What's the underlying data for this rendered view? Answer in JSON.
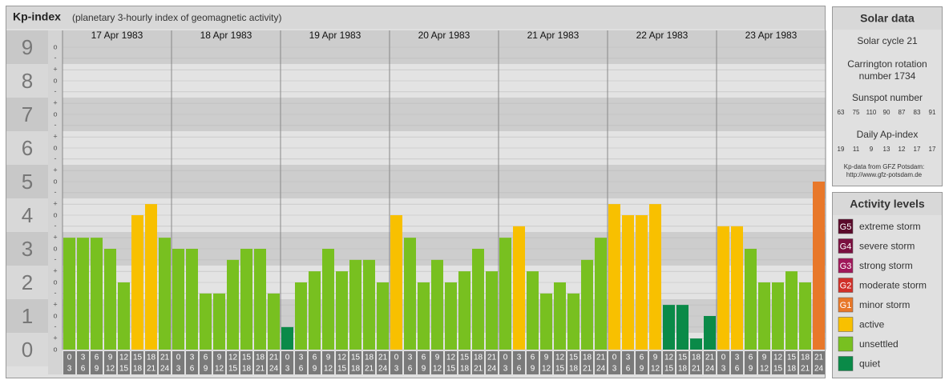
{
  "chart_data": {
    "type": "bar",
    "title": "Kp-index",
    "subtitle": "(planetary 3-hourly index of geomagnetic activity)",
    "days": [
      "17 Apr 1983",
      "18 Apr 1983",
      "19 Apr 1983",
      "20 Apr 1983",
      "21 Apr 1983",
      "22 Apr 1983",
      "23 Apr 1983"
    ],
    "hours": [
      [
        0,
        3
      ],
      [
        3,
        6
      ],
      [
        6,
        9
      ],
      [
        9,
        12
      ],
      [
        12,
        15
      ],
      [
        15,
        18
      ],
      [
        18,
        21
      ],
      [
        21,
        24
      ]
    ],
    "values": [
      [
        3.33,
        3.33,
        3.33,
        3,
        2,
        4,
        4.33,
        3.33
      ],
      [
        3,
        3,
        1.67,
        1.67,
        2.67,
        3,
        3,
        1.67
      ],
      [
        0.67,
        2,
        2.33,
        3,
        2.33,
        2.67,
        2.67,
        2
      ],
      [
        4,
        3.33,
        2,
        2.67,
        2,
        2.33,
        3,
        2.33
      ],
      [
        3.33,
        3.67,
        2.33,
        1.67,
        2,
        1.67,
        2.67,
        3.33
      ],
      [
        4.33,
        4,
        4,
        4.33,
        1.33,
        1.33,
        0.33,
        1
      ],
      [
        3.67,
        3.67,
        3,
        2,
        2,
        2.33,
        2,
        5
      ]
    ],
    "colors": [
      [
        "#78c020",
        "#78c020",
        "#78c020",
        "#78c020",
        "#78c020",
        "#f8c000",
        "#f8c000",
        "#78c020"
      ],
      [
        "#78c020",
        "#78c020",
        "#78c020",
        "#78c020",
        "#78c020",
        "#78c020",
        "#78c020",
        "#78c020"
      ],
      [
        "#0a8a48",
        "#78c020",
        "#78c020",
        "#78c020",
        "#78c020",
        "#78c020",
        "#78c020",
        "#78c020"
      ],
      [
        "#f8c000",
        "#78c020",
        "#78c020",
        "#78c020",
        "#78c020",
        "#78c020",
        "#78c020",
        "#78c020"
      ],
      [
        "#78c020",
        "#f8c000",
        "#78c020",
        "#78c020",
        "#78c020",
        "#78c020",
        "#78c020",
        "#78c020"
      ],
      [
        "#f8c000",
        "#f8c000",
        "#f8c000",
        "#f8c000",
        "#0a8a48",
        "#0a8a48",
        "#0a8a48",
        "#0a8a48"
      ],
      [
        "#f8c000",
        "#f8c000",
        "#78c020",
        "#78c020",
        "#78c020",
        "#78c020",
        "#78c020",
        "#e8782a"
      ]
    ],
    "ylim": [
      0,
      9.5
    ],
    "yticks": [
      0,
      1,
      2,
      3,
      4,
      5,
      6,
      7,
      8,
      9
    ],
    "minor_ticks": [
      {
        "value": 0,
        "label": "o"
      },
      {
        "value": 0.33,
        "label": "+"
      },
      {
        "value": 0.67,
        "label": "-"
      },
      {
        "value": 1,
        "label": "o"
      },
      {
        "value": 1.33,
        "label": "+"
      },
      {
        "value": 1.67,
        "label": "-"
      },
      {
        "value": 2,
        "label": "o"
      },
      {
        "value": 2.33,
        "label": "+"
      },
      {
        "value": 2.67,
        "label": "-"
      },
      {
        "value": 3,
        "label": "o"
      },
      {
        "value": 3.33,
        "label": "+"
      },
      {
        "value": 3.67,
        "label": "-"
      },
      {
        "value": 4,
        "label": "o"
      },
      {
        "value": 4.33,
        "label": "+"
      },
      {
        "value": 4.67,
        "label": "-"
      },
      {
        "value": 5,
        "label": "o"
      },
      {
        "value": 5.33,
        "label": "+"
      },
      {
        "value": 5.67,
        "label": "-"
      },
      {
        "value": 6,
        "label": "o"
      },
      {
        "value": 6.33,
        "label": "+"
      },
      {
        "value": 6.67,
        "label": "-"
      },
      {
        "value": 7,
        "label": "o"
      },
      {
        "value": 7.33,
        "label": "+"
      },
      {
        "value": 7.67,
        "label": "-"
      },
      {
        "value": 8,
        "label": "o"
      },
      {
        "value": 8.33,
        "label": "+"
      },
      {
        "value": 8.67,
        "label": "-"
      },
      {
        "value": 9,
        "label": "o"
      }
    ],
    "grid": true
  },
  "solar_data": {
    "title": "Solar data",
    "cycle": "Solar cycle 21",
    "carrington": [
      "Carrington rotation",
      "number 1734"
    ],
    "sunspot_title": "Sunspot number",
    "sunspot": [
      63,
      75,
      110,
      90,
      87,
      83,
      91
    ],
    "ap_title": "Daily Ap-index",
    "ap": [
      19,
      11,
      9,
      13,
      12,
      17,
      17
    ],
    "source": [
      "Kp-data from GFZ Potsdam:",
      "http://www.gfz-potsdam.de"
    ]
  },
  "activity_levels": {
    "title": "Activity levels",
    "items": [
      {
        "code": "G5",
        "name": "extreme storm",
        "color": "#5a0a2a"
      },
      {
        "code": "G4",
        "name": "severe storm",
        "color": "#7a1040"
      },
      {
        "code": "G3",
        "name": "strong storm",
        "color": "#a0185a"
      },
      {
        "code": "G2",
        "name": "moderate storm",
        "color": "#d0302a"
      },
      {
        "code": "G1",
        "name": "minor storm",
        "color": "#e8782a"
      },
      {
        "name": "active",
        "color": "#f8c000"
      },
      {
        "name": "unsettled",
        "color": "#78c020"
      },
      {
        "name": "quiet",
        "color": "#0a8a48"
      }
    ]
  }
}
